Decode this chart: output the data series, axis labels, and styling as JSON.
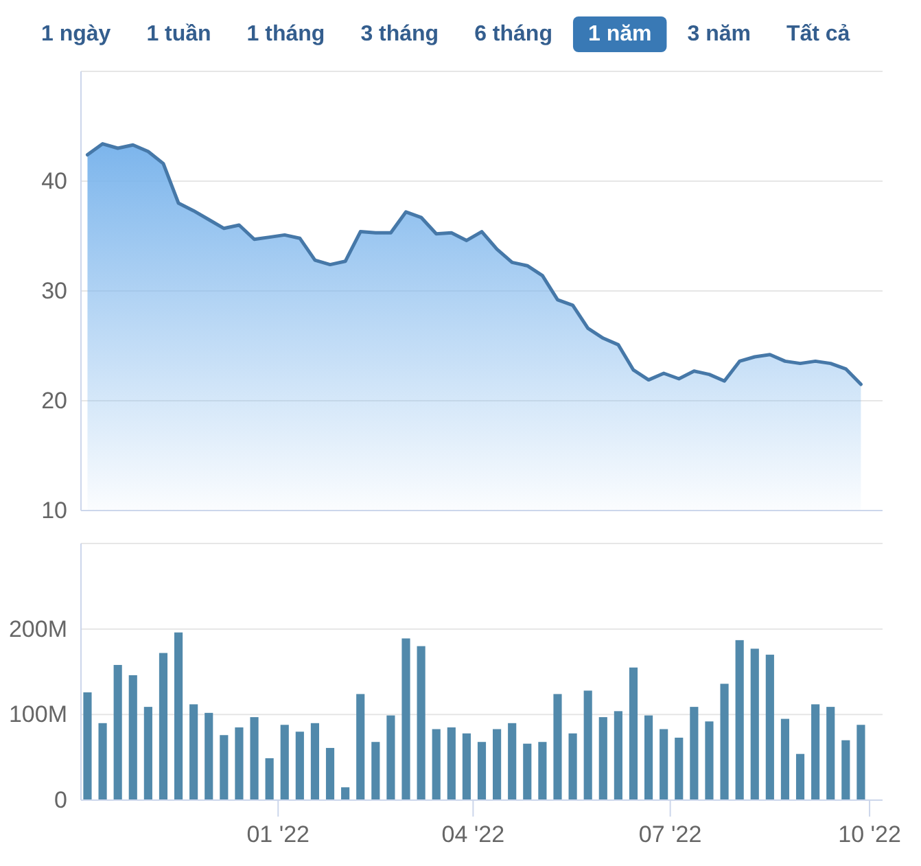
{
  "chart_data": [
    {
      "type": "other",
      "annotations": [
        "1 ngày",
        "1 tuần",
        "1 tháng",
        "3 tháng",
        "6 tháng",
        "1 năm",
        "3 năm",
        "Tất cả"
      ]
    },
    {
      "type": "area",
      "x": [
        "2021-10-05",
        "2021-10-12",
        "2021-10-19",
        "2021-10-26",
        "2021-11-02",
        "2021-11-09",
        "2021-11-16",
        "2021-11-23",
        "2021-11-30",
        "2021-12-07",
        "2021-12-14",
        "2021-12-21",
        "2021-12-28",
        "2022-01-04",
        "2022-01-11",
        "2022-01-18",
        "2022-01-25",
        "2022-02-01",
        "2022-02-08",
        "2022-02-15",
        "2022-02-22",
        "2022-03-01",
        "2022-03-08",
        "2022-03-15",
        "2022-03-22",
        "2022-03-29",
        "2022-04-05",
        "2022-04-12",
        "2022-04-19",
        "2022-04-26",
        "2022-05-03",
        "2022-05-10",
        "2022-05-17",
        "2022-05-24",
        "2022-05-31",
        "2022-06-07",
        "2022-06-14",
        "2022-06-21",
        "2022-06-28",
        "2022-07-05",
        "2022-07-12",
        "2022-07-19",
        "2022-07-26",
        "2022-08-02",
        "2022-08-09",
        "2022-08-16",
        "2022-08-23",
        "2022-08-30",
        "2022-09-06",
        "2022-09-13",
        "2022-09-20",
        "2022-09-27"
      ],
      "series": [
        {
          "color": "#7cb5ec",
          "values": [
            42.4,
            43.4,
            43.0,
            43.3,
            42.7,
            41.6,
            38.0,
            37.3,
            36.5,
            35.7,
            36.0,
            34.7,
            34.9,
            35.1,
            34.8,
            32.8,
            32.4,
            32.7,
            35.4,
            35.3,
            35.3,
            37.2,
            36.7,
            35.2,
            35.3,
            34.6,
            35.4,
            33.8,
            32.6,
            32.3,
            31.4,
            29.2,
            28.7,
            26.6,
            25.7,
            25.1,
            22.8,
            21.9,
            22.5,
            22.0,
            22.7,
            22.4,
            21.8,
            23.6,
            24.0,
            24.2,
            23.6,
            23.4,
            23.6,
            23.4,
            22.9,
            21.5
          ]
        }
      ],
      "xlim": [
        "2021-10-02",
        "2022-10-07"
      ],
      "ylim": [
        10,
        50
      ],
      "yticks": [
        10,
        20,
        30,
        40,
        {
          "value": 50,
          "label": null
        }
      ],
      "grid": "y",
      "tick_labels": "y"
    },
    {
      "type": "bar",
      "x": [
        "2021-10-05",
        "2021-10-12",
        "2021-10-19",
        "2021-10-26",
        "2021-11-02",
        "2021-11-09",
        "2021-11-16",
        "2021-11-23",
        "2021-11-30",
        "2021-12-07",
        "2021-12-14",
        "2021-12-21",
        "2021-12-28",
        "2022-01-04",
        "2022-01-11",
        "2022-01-18",
        "2022-01-25",
        "2022-02-01",
        "2022-02-08",
        "2022-02-15",
        "2022-02-22",
        "2022-03-01",
        "2022-03-08",
        "2022-03-15",
        "2022-03-22",
        "2022-03-29",
        "2022-04-05",
        "2022-04-12",
        "2022-04-19",
        "2022-04-26",
        "2022-05-03",
        "2022-05-10",
        "2022-05-17",
        "2022-05-24",
        "2022-05-31",
        "2022-06-07",
        "2022-06-14",
        "2022-06-21",
        "2022-06-28",
        "2022-07-05",
        "2022-07-12",
        "2022-07-19",
        "2022-07-26",
        "2022-08-02",
        "2022-08-09",
        "2022-08-16",
        "2022-08-23",
        "2022-08-30",
        "2022-09-06",
        "2022-09-13",
        "2022-09-20",
        "2022-09-27"
      ],
      "values": [
        126000000,
        90000000,
        158000000,
        146000000,
        109000000,
        172000000,
        196000000,
        112000000,
        102000000,
        76000000,
        85000000,
        97000000,
        49000000,
        88000000,
        80000000,
        90000000,
        61000000,
        15000000,
        124000000,
        68000000,
        99000000,
        189000000,
        180000000,
        83000000,
        85000000,
        78000000,
        68000000,
        83000000,
        90000000,
        66000000,
        68000000,
        124000000,
        78000000,
        128000000,
        97000000,
        104000000,
        155000000,
        99000000,
        83000000,
        73000000,
        109000000,
        92000000,
        136000000,
        187000000,
        177000000,
        170000000,
        95000000,
        54000000,
        112000000,
        109000000,
        70000000,
        88000000
      ],
      "color": "#5189ab",
      "xlim": [
        "2021-10-02",
        "2022-10-07"
      ],
      "xticks": [
        {
          "value": "2022-01-01",
          "label": "01 '22"
        },
        {
          "value": "2022-04-01",
          "label": "04 '22"
        },
        {
          "value": "2022-07-01",
          "label": "07 '22"
        },
        {
          "value": "2022-10-01",
          "label": "10 '22"
        }
      ],
      "ylim": [
        0,
        300000000
      ],
      "yticks": [
        0,
        {
          "value": 100000000,
          "label": "100M"
        },
        {
          "value": 200000000,
          "label": "200M"
        },
        {
          "value": 300000000,
          "label": null
        }
      ],
      "grid": "y"
    }
  ]
}
